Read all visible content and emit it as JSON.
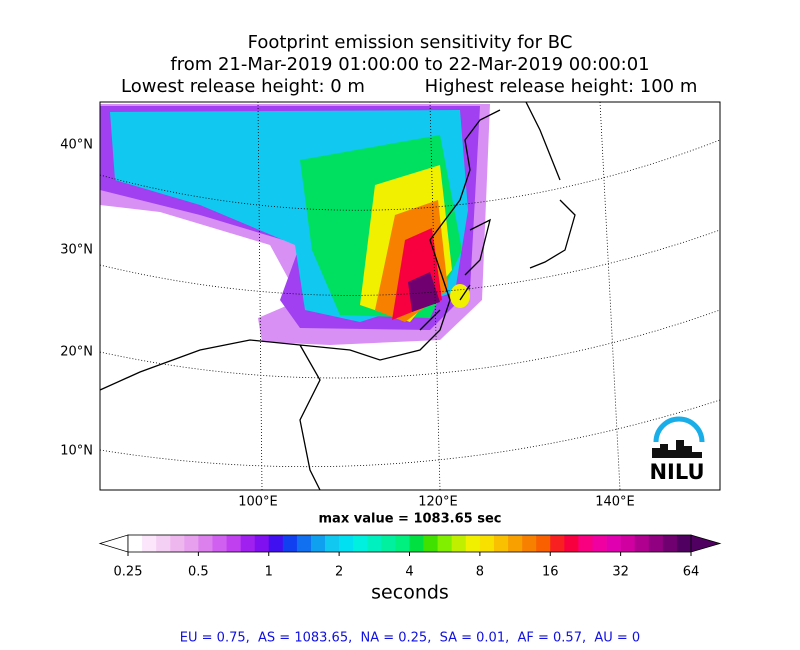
{
  "title": {
    "line1": "Footprint emission sensitivity for BC",
    "line2": "from 21-Mar-2019 01:00:00 to 22-Mar-2019 00:00:01",
    "lowest": "Lowest release height: 0 m",
    "highest": "Highest release height: 100 m"
  },
  "map": {
    "lat_labels": [
      "40°N",
      "30°N",
      "20°N",
      "10°N"
    ],
    "lon_labels": [
      "100°E",
      "120°E",
      "140°E"
    ],
    "max_value": "max value = 1083.65 sec",
    "logo": "NILU"
  },
  "colorbar": {
    "ticks": [
      "0.25",
      "0.5",
      "1",
      "2",
      "4",
      "8",
      "16",
      "32",
      "64"
    ],
    "label": "seconds",
    "under_color": "#ffffff",
    "over_color": "#500060",
    "colors": [
      "#ffffff",
      "#fbe6fb",
      "#f5d0f5",
      "#eeb8ee",
      "#e6a0ee",
      "#dc80ee",
      "#d060f0",
      "#c040f0",
      "#a020f0",
      "#8010f0",
      "#4010f0",
      "#1040f0",
      "#1070f0",
      "#10a0f0",
      "#10c8f0",
      "#00e0f0",
      "#00f0e0",
      "#00f0c0",
      "#00f0a0",
      "#00f080",
      "#00e040",
      "#40e000",
      "#80f000",
      "#c0f000",
      "#f0f000",
      "#f8e000",
      "#f8c000",
      "#f8a000",
      "#f88000",
      "#f86000",
      "#f82020",
      "#f80040",
      "#f80080",
      "#f000a0",
      "#e000b0",
      "#d000a0",
      "#b00090",
      "#900080",
      "#700070",
      "#500060"
    ]
  },
  "footer": "EU = 0.75,  AS = 1083.65,  NA = 0.25,  SA = 0.01,  AF = 0.57,  AU = 0"
}
